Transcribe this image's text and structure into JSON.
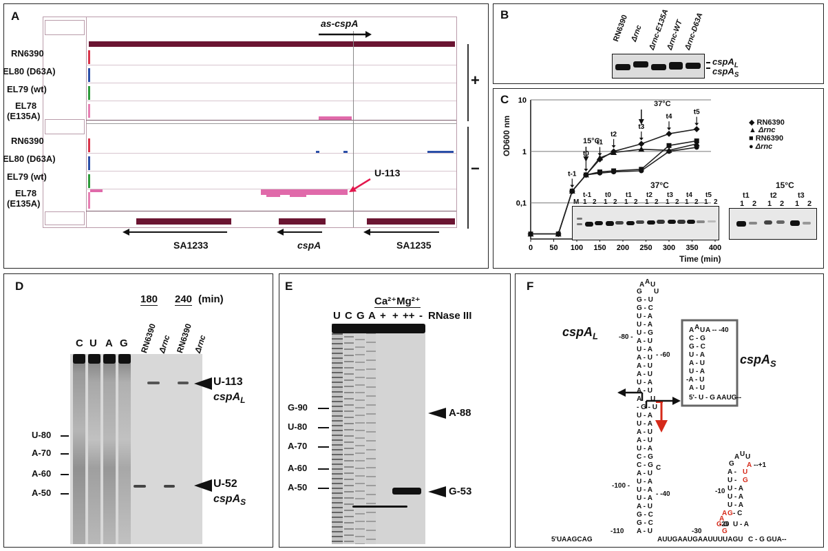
{
  "panels": {
    "a": {
      "label": "A",
      "top_arrow_label": "as-cspA",
      "plus": "+",
      "minus": "−",
      "upper_tracks": [
        "RN6390",
        "EL80 (D63A)",
        "EL79 (wt)",
        "EL78",
        "(E135A)"
      ],
      "lower_tracks": [
        "RN6390",
        "EL80 (D63A)",
        "EL79 (wt)",
        "EL78",
        "(E135A)"
      ],
      "u113": "U-113",
      "genes": [
        "SA1233",
        "cspA",
        "SA1235"
      ]
    },
    "b": {
      "label": "B",
      "lanes": [
        "RN6390",
        "Δrnc",
        "Δrnc-E135A",
        "Δrnc-WT",
        "Δrnc-D63A"
      ],
      "band_l": "cspA",
      "band_l_sub": "L",
      "band_s": "cspA",
      "band_s_sub": "S"
    },
    "c": {
      "label": "C",
      "ylabel": "OD600 nm",
      "xlabel": "Time (min)",
      "temp_15": "15°C",
      "temp_37": "37°C",
      "legend": [
        {
          "marker": "◆",
          "name": "RN6390",
          "italic": false
        },
        {
          "marker": "▲",
          "name": "Δrnc",
          "italic": true
        },
        {
          "marker": "■",
          "name": "RN6390",
          "italic": false
        },
        {
          "marker": "●",
          "name": "Δrnc",
          "italic": true
        }
      ],
      "gel37_title": "37°C",
      "gel37_times": [
        "t-1",
        "t0",
        "t1",
        "t2",
        "t3",
        "t4",
        "t5"
      ],
      "gel15_title": "15°C",
      "gel15_times": [
        "t1",
        "t2",
        "t3"
      ],
      "lane1": "1",
      "lane2": "2",
      "marker_lane": "M"
    },
    "d": {
      "label": "D",
      "time1": "180",
      "time2": "240",
      "time_unit": "(min)",
      "ladder_lanes": [
        "C",
        "U",
        "A",
        "G"
      ],
      "sample_lanes": [
        "RN6390",
        "Δrnc",
        "RN6390",
        "Δrnc"
      ],
      "left_marks": [
        "U-80",
        "A-70",
        "A-60",
        "A-50"
      ],
      "right_top": "U-113",
      "right_top_name": "cspA",
      "right_top_sub": "L",
      "right_bottom": "U-52",
      "right_bottom_name": "cspA",
      "right_bottom_sub": "S"
    },
    "e": {
      "label": "E",
      "ions": "Ca²⁺Mg²⁺",
      "lanes": [
        "U",
        "C",
        "G",
        "A",
        "+",
        "+",
        "++",
        "-"
      ],
      "enzyme": "RNase III",
      "left_marks": [
        "G-90",
        "U-80",
        "A-70",
        "A-60",
        "A-50"
      ],
      "right_marks": [
        "A-88",
        "G-53"
      ]
    },
    "f": {
      "label": "F",
      "cspL": "cspA",
      "cspL_sub": "L",
      "cspS": "cspA",
      "cspS_sub": "S"
    }
  },
  "chart_data": {
    "type": "line",
    "xlabel": "Time (min)",
    "ylabel": "OD600 nm",
    "x_ticks": [
      0,
      50,
      100,
      150,
      200,
      250,
      300,
      350,
      400
    ],
    "y_ticks": [
      "0,1",
      "1",
      "10"
    ],
    "yscale": "log",
    "xlim": [
      0,
      400
    ],
    "ylim": [
      0.02,
      10
    ],
    "series": [
      {
        "name": "RN6390",
        "marker": "diamond",
        "x": [
          0,
          60,
          90,
          120,
          150,
          180,
          240,
          300,
          360
        ],
        "y": [
          0.025,
          0.025,
          0.17,
          0.35,
          0.7,
          1.0,
          1.4,
          2.2,
          2.7
        ]
      },
      {
        "name": "Δrnc",
        "marker": "triangle",
        "x": [
          0,
          60,
          90,
          120,
          150,
          180,
          240,
          300,
          360
        ],
        "y": [
          0.025,
          0.025,
          0.17,
          0.35,
          0.75,
          0.95,
          1.1,
          1.05,
          1.4
        ]
      },
      {
        "name": "RN6390",
        "marker": "square",
        "x": [
          0,
          60,
          90,
          120,
          150,
          180,
          240,
          300,
          360
        ],
        "y": [
          0.025,
          0.025,
          0.17,
          0.35,
          0.4,
          0.42,
          0.45,
          1.3,
          1.6
        ]
      },
      {
        "name": "Δrnc",
        "marker": "circle",
        "x": [
          0,
          60,
          90,
          120,
          150,
          180,
          240,
          300,
          360
        ],
        "y": [
          0.025,
          0.025,
          0.17,
          0.35,
          0.38,
          0.4,
          0.42,
          1.0,
          1.2
        ]
      }
    ],
    "annotations": [
      "t-1",
      "t0",
      "t1",
      "t2",
      "t3",
      "t4",
      "t5"
    ]
  }
}
